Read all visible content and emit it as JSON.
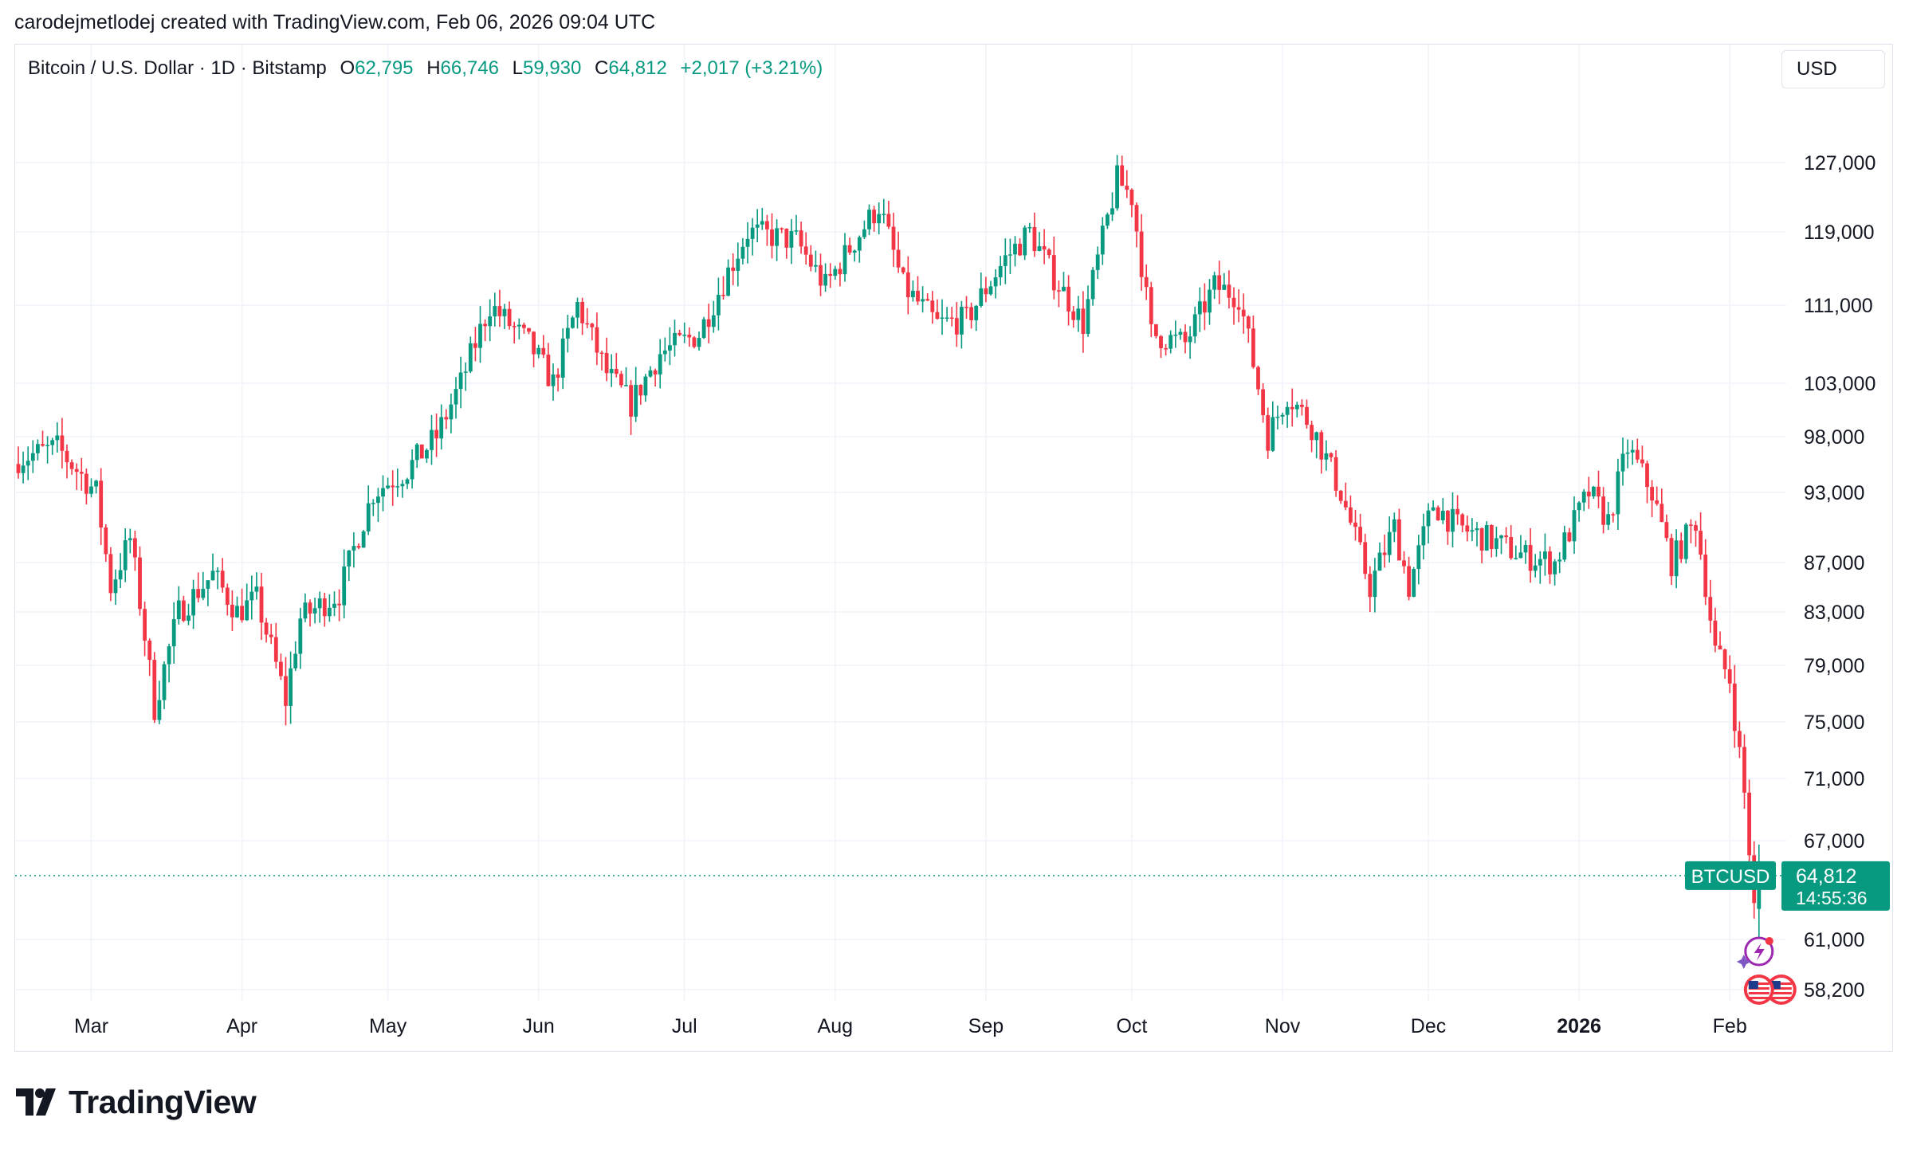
{
  "caption": "carodejmetlodej created with TradingView.com, Feb 06, 2026 09:04 UTC",
  "legend": {
    "symbol": "Bitcoin / U.S. Dollar · 1D · Bitstamp",
    "o_label": "O",
    "o_value": "62,795",
    "h_label": "H",
    "h_value": "66,746",
    "l_label": "L",
    "l_value": "59,930",
    "c_label": "C",
    "c_value": "64,812",
    "change": "+2,017 (+3.21%)"
  },
  "currency_button": "USD",
  "price_tag": {
    "symbol": "BTCUSD",
    "price": "64,812",
    "countdown": "14:55:36"
  },
  "brand": "TradingView",
  "colors": {
    "up": "#089981",
    "down": "#f23645",
    "grid": "#f0f3fa",
    "text": "#131722",
    "accent": "#089981"
  },
  "icons": [
    "tradingview-logo-icon",
    "event-flash-icon",
    "us-flag-event-icon"
  ],
  "chart_data": {
    "type": "candlestick",
    "title": "Bitcoin / U.S. Dollar · 1D · Bitstamp",
    "y_ticks": [
      127000,
      119000,
      111000,
      103000,
      98000,
      93000,
      87000,
      83000,
      79000,
      75000,
      71000,
      67000,
      61000,
      58200
    ],
    "y_tick_labels": [
      "127,000",
      "119,000",
      "111,000",
      "103,000",
      "98,000",
      "93,000",
      "87,000",
      "83,000",
      "79,000",
      "75,000",
      "71,000",
      "67,000",
      "61,000",
      "58,200"
    ],
    "x_tick_labels": [
      "Mar",
      "Apr",
      "May",
      "Jun",
      "Jul",
      "Aug",
      "Sep",
      "Oct",
      "Nov",
      "Dec",
      "2026",
      "Feb"
    ],
    "x_tick_bold": [
      false,
      false,
      false,
      false,
      false,
      false,
      false,
      false,
      false,
      false,
      true,
      false
    ],
    "x_tick_day_index": [
      15,
      46,
      76,
      107,
      137,
      168,
      199,
      229,
      260,
      290,
      321,
      352
    ],
    "last_price": 64812,
    "current": {
      "open": 62795,
      "high": 66746,
      "low": 59930,
      "close": 64812
    },
    "close_path": [
      [
        0,
        96000
      ],
      [
        8,
        97000
      ],
      [
        12,
        95000
      ],
      [
        16,
        93000
      ],
      [
        19,
        85000
      ],
      [
        23,
        89000
      ],
      [
        28,
        76000
      ],
      [
        33,
        83000
      ],
      [
        40,
        86000
      ],
      [
        45,
        83000
      ],
      [
        49,
        84000
      ],
      [
        55,
        76500
      ],
      [
        58,
        82500
      ],
      [
        66,
        84500
      ],
      [
        73,
        93000
      ],
      [
        80,
        95000
      ],
      [
        86,
        98000
      ],
      [
        91,
        103000
      ],
      [
        97,
        111000
      ],
      [
        105,
        107000
      ],
      [
        110,
        103000
      ],
      [
        115,
        111000
      ],
      [
        121,
        104000
      ],
      [
        126,
        101000
      ],
      [
        132,
        106000
      ],
      [
        140,
        108000
      ],
      [
        150,
        119000
      ],
      [
        160,
        118000
      ],
      [
        166,
        113000
      ],
      [
        172,
        118000
      ],
      [
        177,
        122000
      ],
      [
        182,
        113000
      ],
      [
        189,
        109000
      ],
      [
        195,
        109500
      ],
      [
        203,
        116000
      ],
      [
        208,
        119000
      ],
      [
        213,
        114000
      ],
      [
        219,
        109000
      ],
      [
        226,
        125000
      ],
      [
        229,
        123000
      ],
      [
        233,
        108000
      ],
      [
        240,
        107000
      ],
      [
        246,
        113000
      ],
      [
        251,
        112000
      ],
      [
        257,
        98000
      ],
      [
        261,
        102000
      ],
      [
        266,
        99000
      ],
      [
        272,
        93000
      ],
      [
        278,
        85000
      ],
      [
        283,
        90000
      ],
      [
        286,
        85000
      ],
      [
        291,
        92000
      ],
      [
        296,
        90000
      ],
      [
        302,
        89000
      ],
      [
        310,
        87500
      ],
      [
        316,
        87000
      ],
      [
        323,
        93000
      ],
      [
        327,
        90500
      ],
      [
        331,
        97000
      ],
      [
        336,
        93000
      ],
      [
        340,
        87000
      ],
      [
        345,
        90500
      ],
      [
        349,
        80000
      ],
      [
        352,
        78000
      ],
      [
        355,
        70000
      ],
      [
        357,
        62795
      ],
      [
        358,
        64812
      ]
    ],
    "seed": 7
  }
}
